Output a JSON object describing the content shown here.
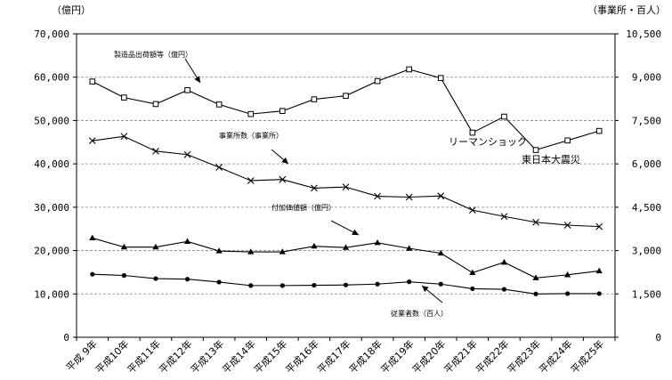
{
  "chart_data": {
    "type": "line",
    "categories": [
      "平成 9年",
      "平成10年",
      "平成11年",
      "平成12年",
      "平成13年",
      "平成14年",
      "平成15年",
      "平成16年",
      "平成17年",
      "平成18年",
      "平成19年",
      "平成20年",
      "平成21年",
      "平成22年",
      "平成23年",
      "平成24年",
      "平成25年"
    ],
    "left_axis": {
      "unit_label": "（億円）",
      "ylim": [
        0,
        70000
      ],
      "ticks": [
        "0",
        "10,000",
        "20,000",
        "30,000",
        "40,000",
        "50,000",
        "60,000",
        "70,000"
      ]
    },
    "right_axis": {
      "unit_label": "（事業所・百人）",
      "ylim": [
        0,
        10500
      ],
      "ticks": [
        "0",
        "1,500",
        "3,000",
        "4,500",
        "6,000",
        "7,500",
        "9,000",
        "10,500"
      ]
    },
    "grid": true,
    "series": [
      {
        "name": "製造品出荷額等（億円）",
        "axis": "left",
        "marker": "square",
        "values": [
          59000,
          55300,
          53800,
          57000,
          53700,
          51500,
          52200,
          54900,
          55700,
          59100,
          61800,
          59800,
          47200,
          50900,
          43200,
          45400,
          47600
        ]
      },
      {
        "name": "事業所数（事業所）",
        "axis": "right",
        "marker": "x",
        "values": [
          6800,
          6950,
          6440,
          6320,
          5880,
          5420,
          5460,
          5160,
          5200,
          4880,
          4850,
          4890,
          4400,
          4180,
          3980,
          3880,
          3830
        ]
      },
      {
        "name": "付加価値額（億円）",
        "axis": "left",
        "marker": "triangle",
        "values": [
          22900,
          20800,
          20800,
          22100,
          19900,
          19700,
          19700,
          21000,
          20700,
          21800,
          20500,
          19400,
          14900,
          17300,
          13700,
          14400,
          15300
        ]
      },
      {
        "name": "従業者数（百人）",
        "axis": "right",
        "marker": "circle",
        "values": [
          2180,
          2140,
          2030,
          2010,
          1910,
          1790,
          1790,
          1800,
          1810,
          1840,
          1920,
          1840,
          1680,
          1660,
          1500,
          1510,
          1510
        ]
      }
    ],
    "annotations": [
      "リーマンショック",
      "東日本大震災"
    ]
  }
}
